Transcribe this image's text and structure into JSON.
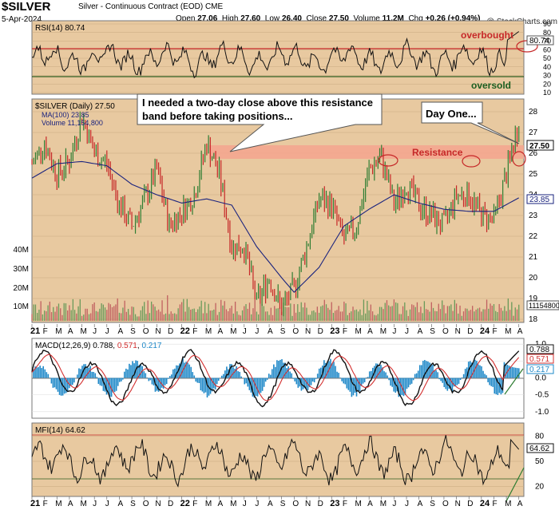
{
  "header": {
    "symbol": "$SILVER",
    "subtitle": "Silver - Continuous Contract (EOD)  CME",
    "date": "5-Apr-2024",
    "open_label": "Open",
    "open": "27.06",
    "high_label": "High",
    "high": "27.60",
    "low_label": "Low",
    "low": "26.40",
    "close_label": "Close",
    "close": "27.50",
    "volume_label": "Volume",
    "volume": "11.2M",
    "chg_label": "Chg",
    "chg": "+0.26 (+0.94%)",
    "credit": "@ StockCharts.com"
  },
  "rsi_panel": {
    "label": "RSI(14) 80.74",
    "current": "80.74",
    "overbought_text": "overbought",
    "oversold_text": "oversold",
    "ticks": [
      "90",
      "80",
      "70",
      "60",
      "50",
      "40",
      "30",
      "20",
      "10"
    ]
  },
  "price_panel": {
    "legend_title": "$SILVER (Daily) 27.50",
    "legend_ma": "MA(100) 23.85",
    "legend_vol": "Volume 11,154,800",
    "price_ticks": [
      "28",
      "27",
      "26",
      "25",
      "24",
      "23",
      "22",
      "21",
      "20",
      "19",
      "18"
    ],
    "vol_ticks": [
      "40M",
      "30M",
      "20M",
      "10M"
    ],
    "last_price_box": "27.50",
    "ma_box": "23.85",
    "vol_box": "11154800",
    "resistance_label": "Resistance",
    "callout_1": "I needed a two-day close above this resistance band before taking positions...",
    "callout_1_line1": "I needed a two-day close above this resistance",
    "callout_1_line2": "band before taking positions...",
    "callout_2": "Day One..."
  },
  "macd_panel": {
    "label_prefix": "MACD(12,26,9)",
    "macd": "0.788",
    "signal": "0.571",
    "hist": "0.217",
    "ticks": [
      "1.0",
      "0.5",
      "0.0",
      "-0.5",
      "-1.0"
    ]
  },
  "mfi_panel": {
    "label": "MFI(14) 64.62",
    "current": "64.62",
    "ticks": [
      "80",
      "50",
      "20"
    ]
  },
  "x_axis_labels": [
    "21",
    "F",
    "M",
    "A",
    "M",
    "J",
    "J",
    "A",
    "S",
    "O",
    "N",
    "D",
    "22",
    "F",
    "M",
    "A",
    "M",
    "J",
    "J",
    "A",
    "S",
    "O",
    "N",
    "D",
    "23",
    "F",
    "M",
    "A",
    "M",
    "J",
    "J",
    "A",
    "S",
    "O",
    "N",
    "D",
    "24",
    "F",
    "M",
    "A"
  ],
  "colors": {
    "panel_bg": "#e8c9a0",
    "up": "#2e7d32",
    "down": "#c62828",
    "ma": "#1a237e",
    "resistance": "#f4a58e",
    "overbought": "#c62828",
    "oversold": "#1b5e20"
  },
  "chart_data": {
    "type": "line",
    "title": "$SILVER Silver - Continuous Contract (EOD) CME",
    "x_range": [
      "2021-01",
      "2024-04"
    ],
    "price": {
      "ylim": [
        18,
        28
      ],
      "resistance_band": [
        26.4,
        27.4
      ],
      "series": [
        {
          "name": "$SILVER (Daily)",
          "points": [
            [
              "2021-01",
              25.5
            ],
            [
              "2021-02",
              26.5
            ],
            [
              "2021-03",
              25.0
            ],
            [
              "2021-04",
              25.6
            ],
            [
              "2021-05",
              27.8
            ],
            [
              "2021-06",
              26.0
            ],
            [
              "2021-07",
              25.5
            ],
            [
              "2021-08",
              23.5
            ],
            [
              "2021-09",
              22.5
            ],
            [
              "2021-10",
              23.7
            ],
            [
              "2021-11",
              25.2
            ],
            [
              "2021-12",
              22.5
            ],
            [
              "2022-01",
              23.2
            ],
            [
              "2022-02",
              24.0
            ],
            [
              "2022-03",
              26.5
            ],
            [
              "2022-04",
              25.0
            ],
            [
              "2022-05",
              21.5
            ],
            [
              "2022-06",
              21.5
            ],
            [
              "2022-07",
              18.8
            ],
            [
              "2022-08",
              20.0
            ],
            [
              "2022-09",
              18.5
            ],
            [
              "2022-10",
              19.5
            ],
            [
              "2022-11",
              21.5
            ],
            [
              "2022-12",
              23.8
            ],
            [
              "2023-01",
              23.5
            ],
            [
              "2023-02",
              21.8
            ],
            [
              "2023-03",
              22.5
            ],
            [
              "2023-04",
              25.2
            ],
            [
              "2023-05",
              25.8
            ],
            [
              "2023-06",
              23.5
            ],
            [
              "2023-07",
              24.5
            ],
            [
              "2023-08",
              23.5
            ],
            [
              "2023-09",
              23.0
            ],
            [
              "2023-10",
              22.5
            ],
            [
              "2023-11",
              24.0
            ],
            [
              "2023-12",
              24.0
            ],
            [
              "2024-01",
              23.0
            ],
            [
              "2024-02",
              22.8
            ],
            [
              "2024-03",
              25.0
            ],
            [
              "2024-04",
              27.5
            ]
          ]
        },
        {
          "name": "MA(100)",
          "points": [
            [
              "2021-01",
              24.8
            ],
            [
              "2021-03",
              25.5
            ],
            [
              "2021-05",
              25.6
            ],
            [
              "2021-07",
              25.4
            ],
            [
              "2021-09",
              24.5
            ],
            [
              "2021-11",
              24.0
            ],
            [
              "2022-01",
              23.6
            ],
            [
              "2022-03",
              23.8
            ],
            [
              "2022-05",
              23.5
            ],
            [
              "2022-07",
              21.5
            ],
            [
              "2022-09",
              20.0
            ],
            [
              "2022-10",
              19.3
            ],
            [
              "2022-12",
              20.5
            ],
            [
              "2023-02",
              22.5
            ],
            [
              "2023-04",
              23.3
            ],
            [
              "2023-06",
              24.0
            ],
            [
              "2023-08",
              23.6
            ],
            [
              "2023-10",
              23.3
            ],
            [
              "2023-12",
              23.2
            ],
            [
              "2024-02",
              23.2
            ],
            [
              "2024-04",
              23.85
            ]
          ]
        }
      ]
    },
    "rsi": {
      "ylim": [
        10,
        90
      ],
      "overbought": 70,
      "oversold": 30,
      "last": 80.74
    },
    "macd": {
      "ylim": [
        -1.0,
        1.0
      ],
      "macd": 0.788,
      "signal": 0.571,
      "hist": 0.217
    },
    "mfi": {
      "ylim": [
        10,
        90
      ],
      "levels": [
        80,
        20
      ],
      "last": 64.62
    },
    "volume": {
      "last": 11154800
    }
  }
}
